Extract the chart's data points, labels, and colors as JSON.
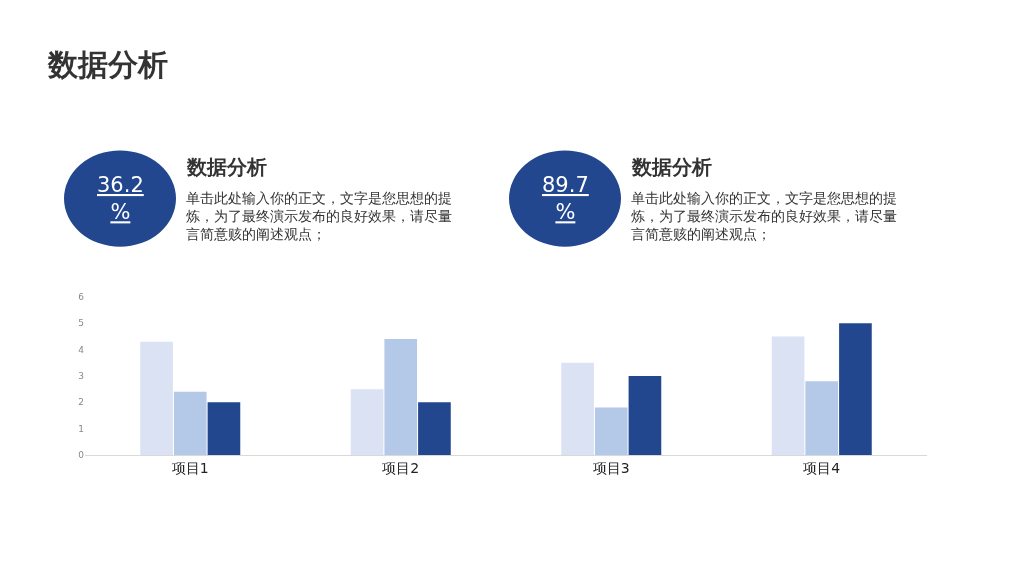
{
  "chart_data": {
    "type": "bar",
    "title": "数据分析",
    "categories": [
      "项目1",
      "项目2",
      "项目3",
      "项目4"
    ],
    "series": [
      {
        "color": "#dae2f3",
        "values": [
          4.3,
          2.5,
          3.5,
          4.5
        ]
      },
      {
        "color": "#b4c8e7",
        "values": [
          2.4,
          4.4,
          1.8,
          2.8
        ]
      },
      {
        "color": "#22478f",
        "values": [
          2,
          2,
          3,
          5
        ]
      }
    ],
    "ylim": [
      0,
      6
    ],
    "yticks": [
      0,
      1,
      2,
      3,
      4,
      5,
      6
    ],
    "annotations": [
      "36.2\n%",
      "数据分析",
      "单击此处输入你的正文，文字是您思想的提炼，为了最终演示发布的良好效果，请尽量言简意赅的阐述观点；",
      "89.7\n%",
      "数据分析",
      "单击此处输入你的正文，文字是您思想的提炼，为了最终演示发布的良好效果，请尽量言简意赅的阐述观点；"
    ]
  }
}
